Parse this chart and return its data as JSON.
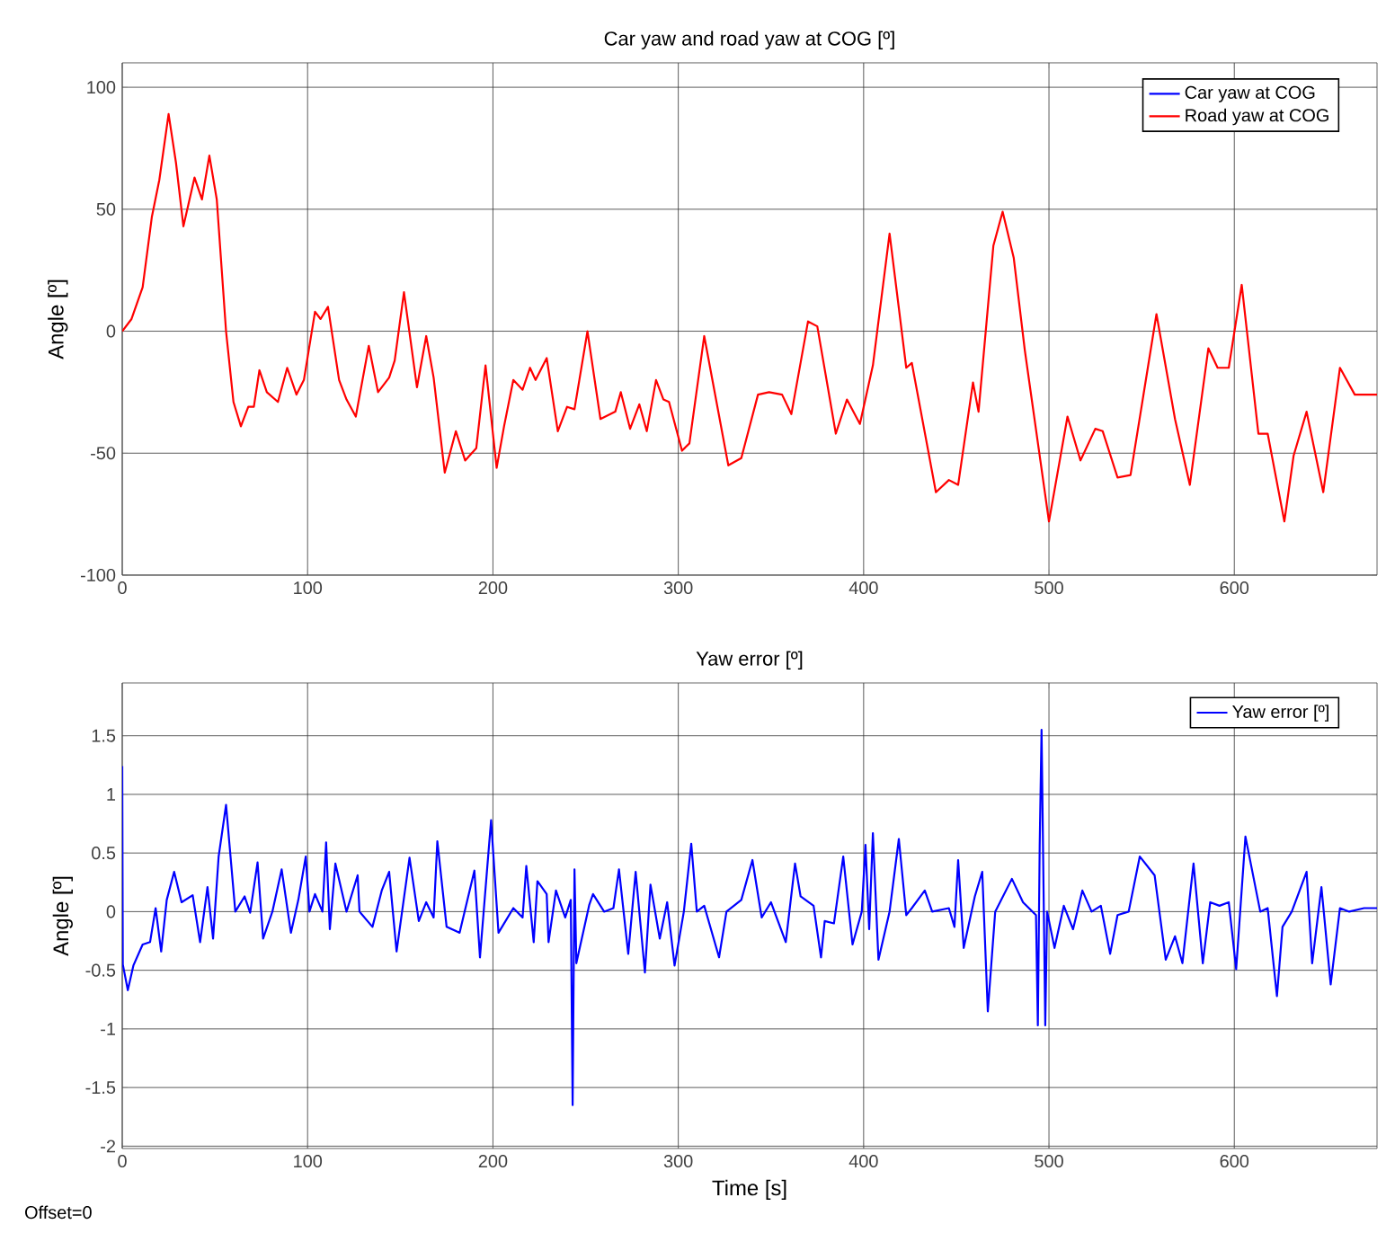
{
  "chart_data": [
    {
      "type": "line",
      "title": "Car yaw and road yaw at COG [º]",
      "ylabel": "Angle [º]",
      "xlim": [
        0,
        677
      ],
      "ylim": [
        -100,
        110
      ],
      "xticks": [
        0,
        100,
        200,
        300,
        400,
        500,
        600
      ],
      "yticks": [
        -100,
        -50,
        0,
        50,
        100
      ],
      "grid": true,
      "legend": "top right",
      "x": [
        0,
        5,
        11,
        16,
        20,
        25,
        29,
        33,
        39,
        43,
        47,
        51,
        56,
        60,
        64,
        68,
        71,
        74,
        78,
        84,
        89,
        94,
        98,
        104,
        107,
        111,
        117,
        121,
        126,
        133,
        138,
        144,
        147,
        152,
        159,
        164,
        168,
        174,
        180,
        185,
        191,
        196,
        202,
        206,
        211,
        216,
        220,
        223,
        229,
        235,
        240,
        244,
        251,
        258,
        266,
        269,
        274,
        279,
        283,
        288,
        292,
        295,
        302,
        306,
        314,
        327,
        334,
        343,
        349,
        356,
        361,
        370,
        375,
        385,
        391,
        398,
        405,
        414,
        423,
        426,
        439,
        446,
        451,
        459,
        462,
        470,
        475,
        481,
        487,
        500,
        510,
        517,
        525,
        529,
        537,
        544,
        558,
        568,
        576,
        586,
        591,
        597,
        604,
        613,
        618,
        627,
        632,
        639,
        648,
        657,
        665,
        677
      ],
      "series": [
        {
          "name": "Car yaw at COG",
          "color": "#0000ff",
          "values": [
            null,
            null,
            null,
            null,
            null,
            null,
            null,
            null,
            null,
            null,
            null,
            null,
            null,
            null,
            null,
            null,
            null,
            null,
            null,
            null,
            null,
            null,
            null,
            null,
            null,
            null,
            null,
            null,
            null,
            null,
            null,
            null,
            null,
            null,
            null,
            null,
            null,
            null,
            null,
            null,
            null,
            null,
            null,
            null,
            null,
            null,
            null,
            null,
            null,
            null,
            null,
            null,
            null,
            null,
            null,
            null,
            null,
            null,
            null,
            null,
            null,
            null,
            null,
            null,
            null,
            null,
            null,
            null,
            null,
            null,
            null,
            null,
            null,
            null,
            null,
            null,
            null,
            null,
            null,
            null,
            null,
            null,
            null,
            null,
            null,
            null,
            null,
            null,
            null,
            null,
            null,
            null,
            null,
            null,
            null,
            null,
            null,
            null,
            null,
            null,
            null,
            null,
            null,
            null,
            null,
            null,
            null,
            null,
            null,
            null,
            null,
            null
          ]
        },
        {
          "name": "Road yaw at COG",
          "color": "#ff0000",
          "values": [
            0,
            5,
            18,
            47,
            62,
            89,
            69,
            43,
            63,
            54,
            72,
            54,
            0,
            -29,
            -39,
            -31,
            -31,
            -16,
            -25,
            -29,
            -15,
            -26,
            -20,
            8,
            5,
            10,
            -20,
            -28,
            -35,
            -6,
            -25,
            -19,
            -12,
            16,
            -23,
            -2,
            -19,
            -58,
            -41,
            -53,
            -48,
            -14,
            -56,
            -39,
            -20,
            -24,
            -15,
            -20,
            -11,
            -41,
            -31,
            -32,
            0,
            -36,
            -33,
            -25,
            -40,
            -30,
            -41,
            -20,
            -28,
            -29,
            -49,
            -46,
            -2,
            -55,
            -52,
            -26,
            -25,
            -26,
            -34,
            4,
            2,
            -42,
            -28,
            -38,
            -14,
            40,
            -15,
            -13,
            -66,
            -61,
            -63,
            -21,
            -33,
            35,
            49,
            30,
            -8,
            -78,
            -35,
            -53,
            -40,
            -41,
            -60,
            -59,
            7,
            -36,
            -63,
            -7,
            -15,
            -15,
            19,
            -42,
            -42,
            -78,
            -51,
            -33,
            -66,
            -15,
            -26,
            -26
          ]
        }
      ]
    },
    {
      "type": "line",
      "title": "Yaw error [º]",
      "xlabel": "Time [s]",
      "ylabel": "Angle [º]",
      "xlim": [
        0,
        677
      ],
      "ylim": [
        -2.02,
        1.95
      ],
      "xticks": [
        0,
        100,
        200,
        300,
        400,
        500,
        600
      ],
      "yticks": [
        -2,
        -1.5,
        -1,
        -0.5,
        0,
        0.5,
        1,
        1.5
      ],
      "grid": true,
      "legend": "top right",
      "annotations": [
        "Offset=0"
      ],
      "x": [
        0,
        0.3,
        3,
        6,
        11,
        15,
        18,
        21,
        24,
        28,
        32,
        38,
        42,
        46,
        49,
        52,
        56,
        61,
        66,
        69,
        73,
        76,
        81,
        86,
        91,
        95,
        99,
        101,
        104,
        108,
        110,
        112,
        115,
        121,
        127,
        128,
        135,
        140,
        144,
        148,
        155,
        160,
        164,
        168,
        170,
        175,
        182,
        190,
        193,
        199,
        203,
        211,
        216,
        218,
        222,
        224,
        229,
        230,
        234,
        239,
        242,
        243,
        244,
        245,
        252,
        254,
        260,
        265,
        268,
        273,
        277,
        282,
        285,
        290,
        294,
        298,
        303,
        307,
        310,
        314,
        322,
        326,
        334,
        340,
        345,
        350,
        358,
        363,
        366,
        373,
        377,
        379,
        384,
        389,
        394,
        399,
        401,
        403,
        405,
        408,
        414,
        419,
        423,
        426,
        433,
        437,
        446,
        449,
        451,
        454,
        460,
        464,
        467,
        471,
        480,
        486,
        493,
        494,
        495,
        496,
        498,
        499,
        503,
        508,
        513,
        518,
        523,
        528,
        533,
        537,
        543,
        549,
        557,
        563,
        568,
        572,
        578,
        583,
        587,
        592,
        597,
        601,
        606,
        614,
        618,
        623,
        626,
        631,
        639,
        642,
        647,
        652,
        657,
        662,
        670,
        677
      ],
      "series": [
        {
          "name": "Yaw error [º]",
          "color": "#0000ff",
          "values": [
            1.24,
            -0.45,
            -0.67,
            -0.46,
            -0.28,
            -0.26,
            0.03,
            -0.34,
            0.1,
            0.34,
            0.08,
            0.14,
            -0.26,
            0.21,
            -0.23,
            0.47,
            0.91,
            0,
            0.13,
            -0.01,
            0.42,
            -0.23,
            0,
            0.36,
            -0.18,
            0.1,
            0.47,
            0,
            0.15,
            0,
            0.59,
            -0.15,
            0.41,
            0,
            0.31,
            0,
            -0.13,
            0.18,
            0.34,
            -0.34,
            0.46,
            -0.08,
            0.08,
            -0.05,
            0.6,
            -0.13,
            -0.18,
            0.35,
            -0.39,
            0.78,
            -0.18,
            0.03,
            -0.05,
            0.39,
            -0.26,
            0.26,
            0.15,
            -0.26,
            0.18,
            -0.05,
            0.1,
            -1.65,
            0.36,
            -0.44,
            0.06,
            0.15,
            0,
            0.03,
            0.36,
            -0.36,
            0.34,
            -0.52,
            0.23,
            -0.23,
            0.08,
            -0.46,
            0,
            0.58,
            0,
            0.05,
            -0.39,
            0,
            0.1,
            0.44,
            -0.05,
            0.08,
            -0.26,
            0.41,
            0.13,
            0.05,
            -0.39,
            -0.08,
            -0.1,
            0.47,
            -0.28,
            0,
            0.57,
            -0.15,
            0.67,
            -0.41,
            0,
            0.62,
            -0.03,
            0.03,
            0.18,
            0,
            0.03,
            -0.13,
            0.44,
            -0.31,
            0.13,
            0.34,
            -0.85,
            0,
            0.28,
            0.08,
            -0.03,
            -0.97,
            0.57,
            1.55,
            -0.97,
            0,
            -0.31,
            0.05,
            -0.15,
            0.18,
            0,
            0.05,
            -0.36,
            -0.03,
            0,
            0.47,
            0.31,
            -0.41,
            -0.21,
            -0.44,
            0.41,
            -0.44,
            0.08,
            0.05,
            0.08,
            -0.49,
            0.64,
            0,
            0.03,
            -0.72,
            -0.13,
            0,
            0.34,
            -0.44,
            0.21,
            -0.62,
            0.03,
            0,
            0.03,
            0.03
          ]
        }
      ]
    }
  ]
}
